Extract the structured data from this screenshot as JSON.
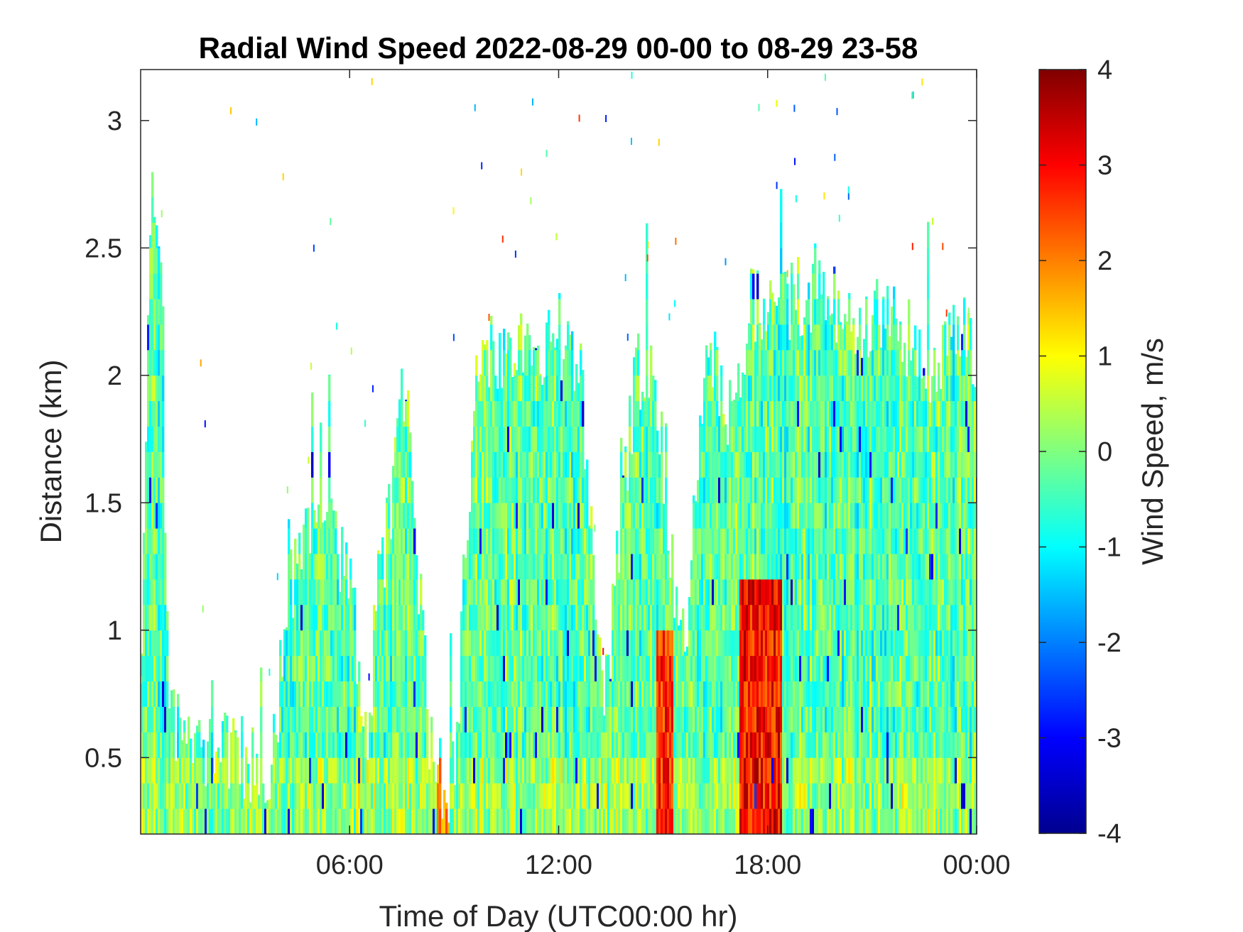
{
  "chart_data": {
    "type": "heatmap",
    "title": "Radial Wind Speed 2022-08-29 00-00 to 08-29 23-58",
    "xlabel": "Time of Day (UTC00:00 hr)",
    "ylabel": "Distance (km)",
    "x_unit": "hours UTC",
    "xlim": [
      0,
      24
    ],
    "ylim": [
      0.2,
      3.2
    ],
    "x_ticks": [
      {
        "value": 6,
        "label": "06:00"
      },
      {
        "value": 12,
        "label": "12:00"
      },
      {
        "value": 18,
        "label": "18:00"
      },
      {
        "value": 24,
        "label": "00:00"
      }
    ],
    "y_ticks": [
      {
        "value": 0.5,
        "label": "0.5"
      },
      {
        "value": 1,
        "label": "1"
      },
      {
        "value": 1.5,
        "label": "1.5"
      },
      {
        "value": 2,
        "label": "2"
      },
      {
        "value": 2.5,
        "label": "2.5"
      },
      {
        "value": 3,
        "label": "3"
      }
    ],
    "colorbar": {
      "label": "Wind Speed, m/s",
      "colormap": "jet",
      "clim": [
        -4,
        4
      ],
      "ticks": [
        {
          "value": 4,
          "label": "4"
        },
        {
          "value": 3,
          "label": "3"
        },
        {
          "value": 2,
          "label": "2"
        },
        {
          "value": 1,
          "label": "1"
        },
        {
          "value": 0,
          "label": "0"
        },
        {
          "value": -1,
          "label": "-1"
        },
        {
          "value": -2,
          "label": "-2"
        },
        {
          "value": -3,
          "label": "-3"
        },
        {
          "value": -4,
          "label": "-4"
        }
      ]
    },
    "data_top_profile_km": [
      [
        0.0,
        0.65
      ],
      [
        0.3,
        2.65
      ],
      [
        0.6,
        2.5
      ],
      [
        0.8,
        0.65
      ],
      [
        1.5,
        0.55
      ],
      [
        2.3,
        0.52
      ],
      [
        3.0,
        0.5
      ],
      [
        3.8,
        0.48
      ],
      [
        4.2,
        1.1
      ],
      [
        4.6,
        1.35
      ],
      [
        5.3,
        1.42
      ],
      [
        6.0,
        1.2
      ],
      [
        6.5,
        0.5
      ],
      [
        6.8,
        1.2
      ],
      [
        7.2,
        1.45
      ],
      [
        7.6,
        2.05
      ],
      [
        8.0,
        1.2
      ],
      [
        8.3,
        0.6
      ],
      [
        8.8,
        0.35
      ],
      [
        9.1,
        0.55
      ],
      [
        9.3,
        1.35
      ],
      [
        9.6,
        1.9
      ],
      [
        10.0,
        2.1
      ],
      [
        11.0,
        2.12
      ],
      [
        12.0,
        2.15
      ],
      [
        12.6,
        2.1
      ],
      [
        12.9,
        1.5
      ],
      [
        13.3,
        0.7
      ],
      [
        13.8,
        1.4
      ],
      [
        14.2,
        2.0
      ],
      [
        14.8,
        2.0
      ],
      [
        15.2,
        1.3
      ],
      [
        15.6,
        0.9
      ],
      [
        15.9,
        1.4
      ],
      [
        16.3,
        2.1
      ],
      [
        17.0,
        1.8
      ],
      [
        17.5,
        2.3
      ],
      [
        18.5,
        2.3
      ],
      [
        19.5,
        2.35
      ],
      [
        20.5,
        2.2
      ],
      [
        21.5,
        2.25
      ],
      [
        22.5,
        2.05
      ],
      [
        23.5,
        2.15
      ],
      [
        24.0,
        2.1
      ]
    ],
    "strong_positive_regions": [
      {
        "x_range_hours": [
          14.8,
          15.3
        ],
        "distance_range_km": [
          0.2,
          0.95
        ],
        "speed_m_s": 3.5
      },
      {
        "x_range_hours": [
          17.2,
          18.4
        ],
        "distance_range_km": [
          0.2,
          1.15
        ],
        "speed_m_s": 3.8
      },
      {
        "x_range_hours": [
          8.5,
          8.9
        ],
        "distance_range_km": [
          0.2,
          0.4
        ],
        "speed_m_s": 2.5
      }
    ]
  }
}
